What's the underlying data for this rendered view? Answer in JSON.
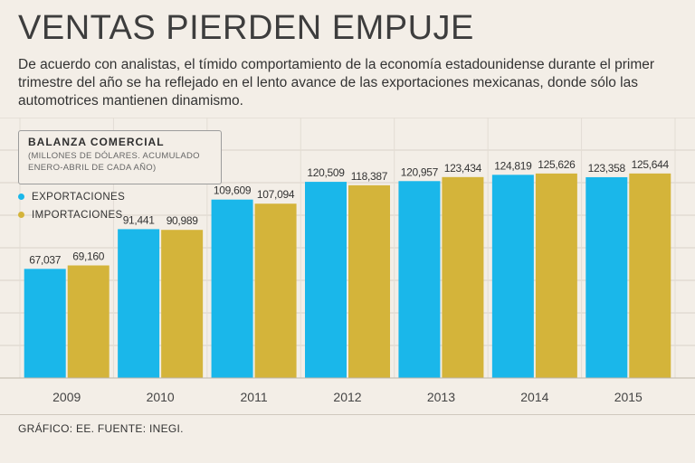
{
  "header": {
    "title": "VENTAS PIERDEN EMPUJE",
    "subtitle": "De acuerdo con analistas, el tímido comportamiento de la economía estadounidense durante el primer trimestre del año se ha reflejado en el lento avance de las exportaciones mexicanas, donde sólo las automotrices mantienen dinamismo."
  },
  "legend": {
    "title": "BALANZA COMERCIAL",
    "note_line1": "(MILLONES DE DÓLARES. ACUMULADO",
    "note_line2": "ENERO-ABRIL DE CADA AÑO)",
    "items": [
      {
        "label": "EXPORTACIONES",
        "color": "#1ab7ea"
      },
      {
        "label": "IMPORTACIONES",
        "color": "#d4b43a"
      }
    ]
  },
  "footer": {
    "source": "GRÁFICO: EE. FUENTE: INEGI."
  },
  "chart_data": {
    "type": "bar",
    "title": "BALANZA COMERCIAL",
    "categories": [
      "2009",
      "2010",
      "2011",
      "2012",
      "2013",
      "2014",
      "2015"
    ],
    "series": [
      {
        "name": "EXPORTACIONES",
        "color": "#1ab7ea",
        "values": [
          67037,
          91441,
          109609,
          120509,
          120957,
          124819,
          123358
        ],
        "labels": [
          "67,037",
          "91,441",
          "109,609",
          "120,509",
          "120,957",
          "124,819",
          "123,358"
        ]
      },
      {
        "name": "IMPORTACIONES",
        "color": "#d4b43a",
        "values": [
          69160,
          90989,
          107094,
          118387,
          123434,
          125626,
          125644
        ],
        "labels": [
          "69,160",
          "90,989",
          "107,094",
          "118,387",
          "123,434",
          "125,626",
          "125,644"
        ]
      }
    ],
    "ylim": [
      0,
      160000
    ],
    "grid": true
  }
}
